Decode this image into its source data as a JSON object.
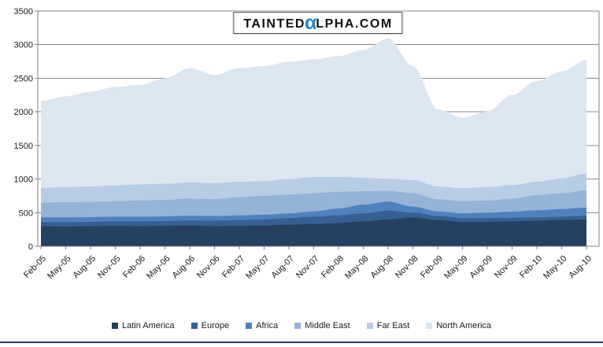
{
  "logo": {
    "prefix": "Tainted",
    "alpha": "α",
    "suffix": "lpha.com",
    "alpha_color": "#2787c9"
  },
  "chart_data": {
    "type": "area",
    "stacked": true,
    "title": "",
    "xlabel": "",
    "ylabel": "",
    "ylim": [
      0,
      3500
    ],
    "yticks": [
      0,
      500,
      1000,
      1500,
      2000,
      2500,
      3000,
      3500
    ],
    "grid": true,
    "legend_position": "bottom",
    "categories": [
      "Feb-05",
      "May-05",
      "Aug-05",
      "Nov-05",
      "Feb-06",
      "May-06",
      "Aug-06",
      "Nov-06",
      "Feb-07",
      "May-07",
      "Aug-07",
      "Nov-07",
      "Feb-08",
      "May-08",
      "Aug-08",
      "Nov-08",
      "Feb-09",
      "May-09",
      "Aug-09",
      "Nov-09",
      "Feb-10",
      "May-10",
      "Aug-10"
    ],
    "series": [
      {
        "name": "Latin America",
        "color": "#254061",
        "values": [
          300,
          295,
          300,
          305,
          300,
          305,
          310,
          300,
          305,
          310,
          320,
          330,
          345,
          370,
          400,
          430,
          390,
          360,
          365,
          370,
          380,
          390,
          400
        ]
      },
      {
        "name": "Europe",
        "color": "#366092",
        "values": [
          60,
          65,
          65,
          65,
          70,
          70,
          75,
          80,
          85,
          90,
          100,
          110,
          115,
          120,
          130,
          70,
          60,
          60,
          55,
          55,
          50,
          50,
          55
        ]
      },
      {
        "name": "Africa",
        "color": "#4f81bd",
        "values": [
          70,
          70,
          70,
          70,
          70,
          70,
          70,
          70,
          70,
          70,
          70,
          80,
          100,
          130,
          135,
          90,
          70,
          70,
          80,
          90,
          105,
          115,
          120
        ]
      },
      {
        "name": "Middle East",
        "color": "#95b3d7",
        "values": [
          220,
          225,
          225,
          230,
          240,
          245,
          255,
          250,
          270,
          280,
          280,
          270,
          250,
          200,
          160,
          200,
          180,
          180,
          180,
          195,
          225,
          235,
          255
        ]
      },
      {
        "name": "Far East",
        "color": "#b8cce4",
        "values": [
          220,
          225,
          230,
          235,
          240,
          240,
          240,
          240,
          230,
          220,
          230,
          240,
          220,
          200,
          180,
          195,
          190,
          195,
          200,
          200,
          200,
          220,
          250
        ]
      },
      {
        "name": "North America",
        "color": "#dce6f1",
        "values": [
          1290,
          1350,
          1410,
          1465,
          1480,
          1570,
          1700,
          1610,
          1690,
          1710,
          1745,
          1750,
          1800,
          1900,
          2085,
          1695,
          1150,
          1050,
          1125,
          1340,
          1500,
          1590,
          1690
        ]
      }
    ],
    "axis_color": "#808080",
    "gridline_color": "#878787",
    "tick_label_color": "#1a1a1a"
  }
}
